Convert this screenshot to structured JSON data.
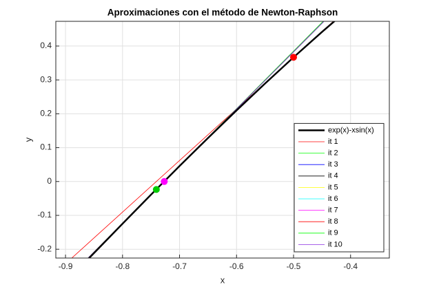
{
  "chart_data": {
    "type": "line",
    "title": "Aproximaciones con el método de Newton-Raphson",
    "xlabel": "x",
    "ylabel": "y",
    "xlim": [
      -0.917,
      -0.332
    ],
    "ylim": [
      -0.226,
      0.473
    ],
    "xticks": [
      -0.9,
      -0.8,
      -0.7,
      -0.6,
      -0.5,
      -0.4
    ],
    "yticks": [
      -0.2,
      -0.1,
      0,
      0.1,
      0.2,
      0.3,
      0.4
    ],
    "grid": true,
    "legend": "southeast",
    "series": [
      {
        "name": "exp(x)-xsin(x)",
        "color": "#000000",
        "linewidth": 2.5,
        "x": [
          -0.9,
          -0.85,
          -0.8,
          -0.75,
          -0.7,
          -0.65,
          -0.6,
          -0.55,
          -0.5,
          -0.45,
          -0.4
        ],
        "values": [
          -0.2984,
          -0.2112,
          -0.1246,
          -0.0388,
          0.0457,
          0.1286,
          0.21,
          0.2894,
          0.3668,
          0.4418,
          0.5145
        ]
      },
      {
        "name": "it 1",
        "color": "#ff0000",
        "linewidth": 0.8,
        "x": [
          -0.9,
          -0.4
        ],
        "values": [
          -0.2428,
          0.5192
        ]
      },
      {
        "name": "it 2",
        "color": "#00ff00",
        "linewidth": 0.8,
        "x": [
          -0.9,
          -0.4
        ],
        "values": [
          -0.2943,
          0.555
        ]
      },
      {
        "name": "it 3",
        "color": "#0000ff",
        "linewidth": 0.8,
        "x": [
          -0.9,
          -0.4
        ],
        "values": [
          -0.293,
          0.552
        ]
      },
      {
        "name": "it 4",
        "color": "#000000",
        "linewidth": 0.8,
        "x": [
          -0.9,
          -0.4
        ],
        "values": [
          -0.293,
          0.552
        ]
      },
      {
        "name": "it 5",
        "color": "#ffff00",
        "linewidth": 0.8,
        "x": [
          -0.9,
          -0.4
        ],
        "values": [
          -0.293,
          0.552
        ]
      },
      {
        "name": "it 6",
        "color": "#00ffff",
        "linewidth": 0.8,
        "x": [
          -0.9,
          -0.4
        ],
        "values": [
          -0.293,
          0.552
        ]
      },
      {
        "name": "it 7",
        "color": "#ff00ff",
        "linewidth": 0.8,
        "x": [
          -0.9,
          -0.4
        ],
        "values": [
          -0.293,
          0.552
        ]
      },
      {
        "name": "it 8",
        "color": "#ff0000",
        "linewidth": 0.8,
        "x": [
          -0.9,
          -0.4
        ],
        "values": [
          -0.293,
          0.552
        ]
      },
      {
        "name": "it 9",
        "color": "#00ff00",
        "linewidth": 0.8,
        "x": [
          -0.9,
          -0.4
        ],
        "values": [
          -0.293,
          0.552
        ]
      },
      {
        "name": "it 10",
        "color": "#8a2be2",
        "linewidth": 0.8,
        "x": [
          -0.9,
          -0.4
        ],
        "values": [
          -0.293,
          0.552
        ]
      }
    ],
    "points": [
      {
        "x": -0.5,
        "y": 0.3668,
        "color": "#ff0000"
      },
      {
        "x": -0.7407,
        "y": -0.0236,
        "color": "#00cc00"
      },
      {
        "x": -0.7268,
        "y": 0,
        "color": "#ff00ff"
      }
    ]
  }
}
